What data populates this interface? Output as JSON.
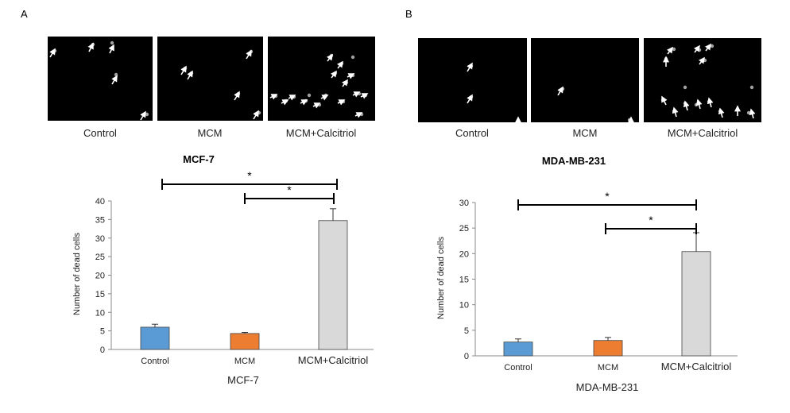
{
  "panels": [
    {
      "letter": "A",
      "micrograph_captions": [
        "Control",
        "MCM",
        "MCM+Calcitriol"
      ],
      "cell_line": "MCF-7"
    },
    {
      "letter": "B",
      "micrograph_captions": [
        "Control",
        "MCM",
        "MCM+Calcitriol"
      ],
      "cell_line": "MDA-MB-231"
    }
  ],
  "significance_marker": "*",
  "chart_data": [
    {
      "type": "bar",
      "title": "MCF-7",
      "xlabel": "MCF-7",
      "ylabel": "Number of dead cells",
      "categories": [
        "Control",
        "MCM",
        "MCM+Calcitriol"
      ],
      "values": [
        6.0,
        4.3,
        34.7
      ],
      "errors": [
        0.8,
        0.3,
        3.2
      ],
      "colors": [
        "#5B9BD5",
        "#ED7D31",
        "#D9D9D9"
      ],
      "ylim": [
        0,
        40
      ],
      "yticks": [
        "0",
        "5",
        "10",
        "15",
        "20",
        "25",
        "30",
        "35",
        "40"
      ],
      "significance": [
        {
          "from": "Control",
          "to": "MCM+Calcitriol",
          "label": "*"
        },
        {
          "from": "MCM",
          "to": "MCM+Calcitriol",
          "label": "*"
        }
      ]
    },
    {
      "type": "bar",
      "title": "MDA-MB-231",
      "xlabel": "MDA-MB-231",
      "ylabel": "Number of dead cells",
      "categories": [
        "Control",
        "MCM",
        "MCM+Calcitriol"
      ],
      "values": [
        2.7,
        3.0,
        20.4
      ],
      "errors": [
        0.6,
        0.6,
        3.7
      ],
      "colors": [
        "#5B9BD5",
        "#ED7D31",
        "#D9D9D9"
      ],
      "ylim": [
        0,
        30
      ],
      "yticks": [
        "0",
        "5",
        "10",
        "15",
        "20",
        "25",
        "30"
      ],
      "significance": [
        {
          "from": "Control",
          "to": "MCM+Calcitriol",
          "label": "*"
        },
        {
          "from": "MCM",
          "to": "MCM+Calcitriol",
          "label": "*"
        }
      ]
    }
  ]
}
